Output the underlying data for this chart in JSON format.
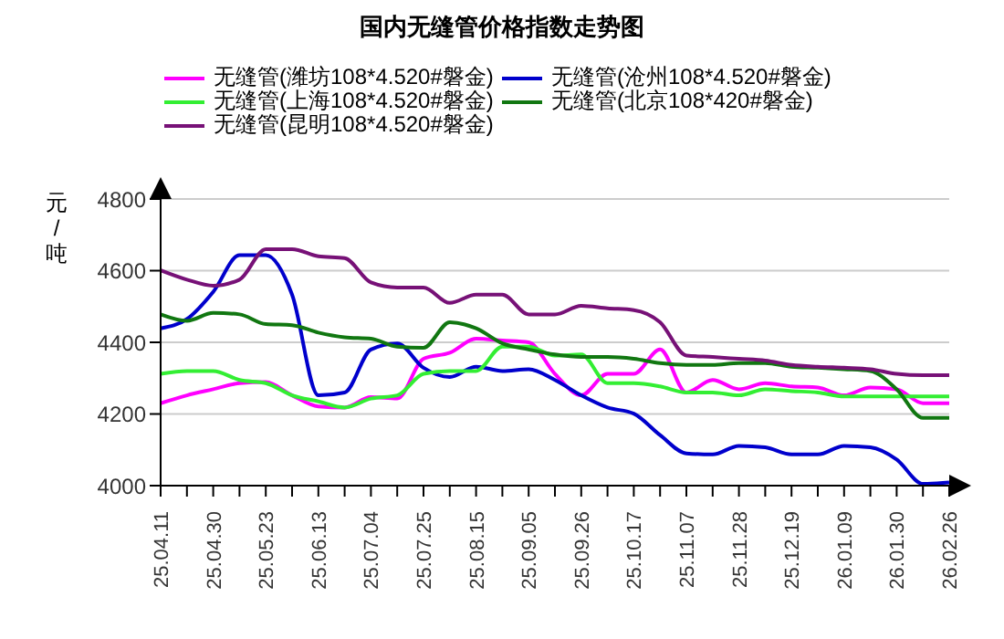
{
  "chart_data": {
    "type": "line",
    "title": "国内无缝管价格指数走势图",
    "ylabel": "元/吨",
    "categories": [
      "25.04.11",
      null,
      "25.04.30",
      null,
      "25.05.23",
      null,
      "25.06.13",
      null,
      "25.07.04",
      null,
      "25.07.25",
      null,
      "25.08.15",
      null,
      "25.09.05",
      null,
      "25.09.26",
      null,
      "25.10.17",
      null,
      "25.11.07",
      null,
      "25.11.28",
      null,
      "25.12.19",
      null,
      "26.01.09",
      null,
      "26.01.30",
      null,
      "26.02.26"
    ],
    "series": [
      {
        "name": "无缝管(潍坊108*4.520#磐金)",
        "color": "#ff00ff",
        "values": [
          4230,
          4252,
          4269,
          4286,
          4289,
          4252,
          4221,
          4218,
          4247,
          4243,
          4354,
          4371,
          4410,
          4405,
          4400,
          4312,
          4252,
          4312,
          4312,
          4380,
          4260,
          4295,
          4269,
          4286,
          4277,
          4274,
          4252,
          4274,
          4269,
          4230,
          4230
        ]
      },
      {
        "name": "无缝管(沧州108*4.520#磐金)",
        "color": "#0000cc",
        "values": [
          4439,
          4465,
          4541,
          4643,
          4643,
          4533,
          4252,
          4260,
          4380,
          4397,
          4329,
          4303,
          4332,
          4320,
          4325,
          4295,
          4252,
          4218,
          4201,
          4141,
          4090,
          4087,
          4111,
          4107,
          4087,
          4087,
          4111,
          4107,
          4073,
          4005,
          4009
        ]
      },
      {
        "name": "无缝管(上海108*4.520#磐金)",
        "color": "#33ee33",
        "values": [
          4312,
          4320,
          4320,
          4295,
          4286,
          4252,
          4235,
          4218,
          4243,
          4252,
          4312,
          4320,
          4320,
          4388,
          4388,
          4363,
          4366,
          4286,
          4286,
          4277,
          4260,
          4260,
          4252,
          4269,
          4264,
          4260,
          4249,
          4249,
          4249,
          4249,
          4249
        ]
      },
      {
        "name": "无缝管(北京108*420#磐金)",
        "color": "#117711",
        "values": [
          4478,
          4460,
          4482,
          4478,
          4451,
          4448,
          4427,
          4414,
          4410,
          4388,
          4385,
          4456,
          4439,
          4397,
          4380,
          4366,
          4359,
          4359,
          4354,
          4342,
          4337,
          4337,
          4342,
          4342,
          4332,
          4329,
          4325,
          4320,
          4269,
          4189,
          4189
        ]
      },
      {
        "name": "无缝管(昆明108*4.520#磐金)",
        "color": "#771177",
        "values": [
          4601,
          4575,
          4558,
          4575,
          4660,
          4660,
          4640,
          4635,
          4567,
          4553,
          4553,
          4510,
          4533,
          4533,
          4478,
          4478,
          4502,
          4495,
          4490,
          4456,
          4363,
          4359,
          4354,
          4349,
          4337,
          4332,
          4329,
          4325,
          4312,
          4308,
          4308
        ]
      }
    ],
    "ylim": [
      4000,
      4800
    ],
    "yticks": [
      4000,
      4200,
      4400,
      4600,
      4800
    ],
    "grid": "y",
    "legend": "top"
  }
}
